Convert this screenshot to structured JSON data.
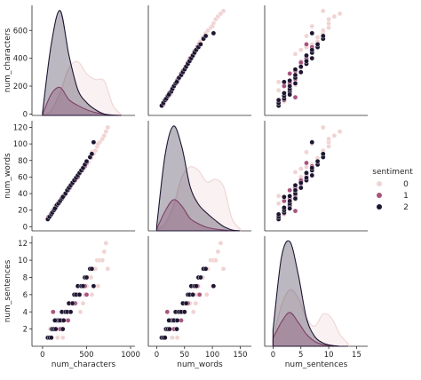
{
  "chart_data": {
    "type": "pairplot",
    "variables": [
      "num_characters",
      "num_words",
      "num_sentences"
    ],
    "axis_labels": {
      "num_characters": "num_characters",
      "num_words": "num_words",
      "num_sentences": "num_sentences"
    },
    "x_ticks": {
      "num_characters": [
        0,
        500,
        1000
      ],
      "num_words": [
        0,
        50,
        100,
        150
      ],
      "num_sentences": [
        0,
        5,
        10,
        15
      ]
    },
    "y_ticks": {
      "num_characters": [
        0,
        200,
        400,
        600
      ],
      "num_words": [
        0,
        20,
        40,
        60,
        80,
        100,
        120
      ],
      "num_sentences": [
        2,
        4,
        6,
        8,
        10,
        12
      ]
    },
    "ranges": {
      "num_characters": [
        -120,
        1050
      ],
      "num_words": [
        -15,
        170
      ],
      "num_sentences": [
        -1.5,
        17
      ]
    },
    "y_ranges": {
      "num_characters": [
        -10,
        780
      ],
      "num_words": [
        -5,
        128
      ],
      "num_sentences": [
        0,
        12.8
      ]
    },
    "legend": {
      "title": "sentiment",
      "entries": [
        {
          "label": "0",
          "color": "#f0d4d3"
        },
        {
          "label": "1",
          "color": "#a8547e"
        },
        {
          "label": "2",
          "color": "#1e1531"
        }
      ],
      "position": "right"
    },
    "series": [
      {
        "name": "0",
        "color": "#f0d4d3",
        "points": [
          [
            90,
            15,
            2
          ],
          [
            140,
            25,
            3
          ],
          [
            180,
            30,
            3
          ],
          [
            210,
            33,
            4
          ],
          [
            250,
            40,
            4
          ],
          [
            280,
            45,
            4
          ],
          [
            300,
            48,
            5
          ],
          [
            330,
            52,
            5
          ],
          [
            360,
            57,
            5
          ],
          [
            380,
            60,
            5
          ],
          [
            410,
            63,
            6
          ],
          [
            430,
            66,
            4
          ],
          [
            460,
            70,
            5
          ],
          [
            480,
            72,
            6
          ],
          [
            500,
            75,
            7
          ],
          [
            520,
            78,
            8
          ],
          [
            550,
            83,
            8
          ],
          [
            580,
            88,
            9
          ],
          [
            600,
            92,
            9
          ],
          [
            620,
            97,
            10
          ],
          [
            650,
            102,
            10
          ],
          [
            680,
            106,
            10
          ],
          [
            700,
            110,
            11
          ],
          [
            720,
            115,
            12
          ],
          [
            740,
            120,
            9
          ],
          [
            630,
            100,
            7
          ],
          [
            560,
            90,
            6
          ],
          [
            230,
            37,
            1
          ],
          [
            170,
            28,
            1
          ]
        ]
      },
      {
        "name": "1",
        "color": "#a8547e",
        "points": [
          [
            70,
            12,
            1
          ],
          [
            100,
            16,
            2
          ],
          [
            130,
            21,
            2
          ],
          [
            160,
            25,
            3
          ],
          [
            190,
            29,
            3
          ],
          [
            220,
            34,
            3
          ],
          [
            250,
            38,
            4
          ],
          [
            280,
            43,
            4
          ],
          [
            310,
            47,
            4
          ],
          [
            340,
            52,
            5
          ],
          [
            370,
            56,
            5
          ],
          [
            400,
            60,
            6
          ],
          [
            420,
            64,
            6
          ],
          [
            450,
            68,
            7
          ],
          [
            480,
            73,
            7
          ],
          [
            500,
            77,
            6
          ],
          [
            120,
            19,
            4
          ],
          [
            200,
            31,
            2
          ],
          [
            290,
            44,
            3
          ]
        ]
      },
      {
        "name": "2",
        "color": "#1e1531",
        "points": [
          [
            60,
            9,
            1
          ],
          [
            80,
            12,
            1
          ],
          [
            100,
            15,
            1
          ],
          [
            110,
            17,
            2
          ],
          [
            130,
            20,
            2
          ],
          [
            150,
            23,
            2
          ],
          [
            160,
            26,
            3
          ],
          [
            180,
            28,
            3
          ],
          [
            200,
            31,
            3
          ],
          [
            220,
            34,
            4
          ],
          [
            240,
            37,
            3
          ],
          [
            260,
            40,
            4
          ],
          [
            280,
            44,
            4
          ],
          [
            300,
            47,
            5
          ],
          [
            320,
            50,
            4
          ],
          [
            340,
            53,
            5
          ],
          [
            360,
            56,
            6
          ],
          [
            380,
            59,
            6
          ],
          [
            400,
            62,
            7
          ],
          [
            420,
            65,
            6
          ],
          [
            440,
            68,
            7
          ],
          [
            460,
            71,
            7
          ],
          [
            480,
            75,
            8
          ],
          [
            500,
            79,
            8
          ],
          [
            540,
            84,
            9
          ],
          [
            560,
            88,
            9
          ],
          [
            580,
            102,
            7
          ],
          [
            140,
            22,
            3
          ],
          [
            230,
            36,
            2
          ]
        ]
      }
    ],
    "kde_diagonal": {
      "num_characters": {
        "x": [
          0,
          100,
          200,
          300,
          400,
          500,
          600,
          700,
          800,
          900
        ],
        "0": [
          2,
          35,
          160,
          330,
          375,
          290,
          250,
          240,
          70,
          3
        ],
        "1": [
          5,
          150,
          195,
          110,
          70,
          40,
          20,
          8,
          2,
          0
        ],
        "2": [
          20,
          500,
          730,
          420,
          180,
          90,
          40,
          10,
          2,
          0
        ]
      },
      "num_words": {
        "x": [
          0,
          15,
          30,
          45,
          60,
          75,
          90,
          105,
          120,
          135,
          150
        ],
        "0": [
          1,
          8,
          28,
          60,
          72,
          68,
          55,
          58,
          50,
          14,
          2
        ],
        "1": [
          2,
          22,
          35,
          28,
          14,
          8,
          4,
          2,
          1,
          0,
          0
        ],
        "2": [
          5,
          85,
          118,
          95,
          50,
          30,
          20,
          12,
          5,
          1,
          0
        ]
      },
      "num_sentences": {
        "x": [
          0,
          1.5,
          3,
          4.5,
          6,
          7.5,
          9,
          10.5,
          12,
          13.5
        ],
        "0": [
          1,
          5,
          7,
          6,
          3.5,
          2.5,
          4,
          3.5,
          1.5,
          0.3
        ],
        "1": [
          1,
          3,
          4.2,
          3,
          1.5,
          0.6,
          0.2,
          0.1,
          0,
          0
        ],
        "2": [
          2,
          11,
          13,
          9,
          3.5,
          1.2,
          0.4,
          0.1,
          0,
          0
        ]
      }
    }
  }
}
